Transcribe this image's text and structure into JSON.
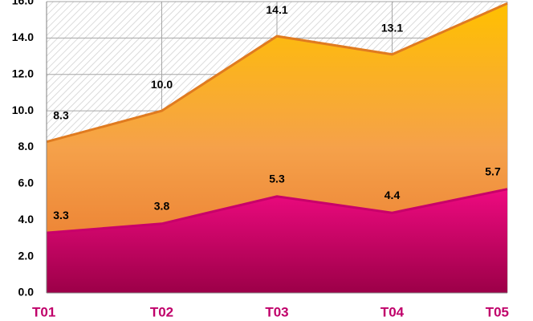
{
  "chart_data": {
    "type": "area",
    "categories": [
      "T01",
      "T02",
      "T03",
      "T04",
      "T05"
    ],
    "series": [
      {
        "color": "#e07b20",
        "values": [
          8.3,
          10.0,
          14.1,
          13.1,
          15.9
        ],
        "value_labels": [
          "8.3",
          "10.0",
          "14.1",
          "13.1",
          null
        ]
      },
      {
        "color": "#c8006a",
        "values": [
          3.3,
          3.8,
          5.3,
          4.4,
          5.7
        ],
        "value_labels": [
          "3.3",
          "3.8",
          "5.3",
          "4.4",
          "5.7"
        ]
      }
    ],
    "ylim": [
      0,
      16
    ],
    "yticks": [
      {
        "value": 0,
        "label": "0.0"
      },
      {
        "value": 2,
        "label": "2.0"
      },
      {
        "value": 4,
        "label": "4.0"
      },
      {
        "value": 6,
        "label": "6.0"
      },
      {
        "value": 8,
        "label": "8.0"
      },
      {
        "value": 10,
        "label": "10.0"
      },
      {
        "value": 12,
        "label": "12.0"
      },
      {
        "value": 14,
        "label": "14.0"
      },
      {
        "value": 16,
        "label": "16.0"
      }
    ],
    "grid": true
  }
}
